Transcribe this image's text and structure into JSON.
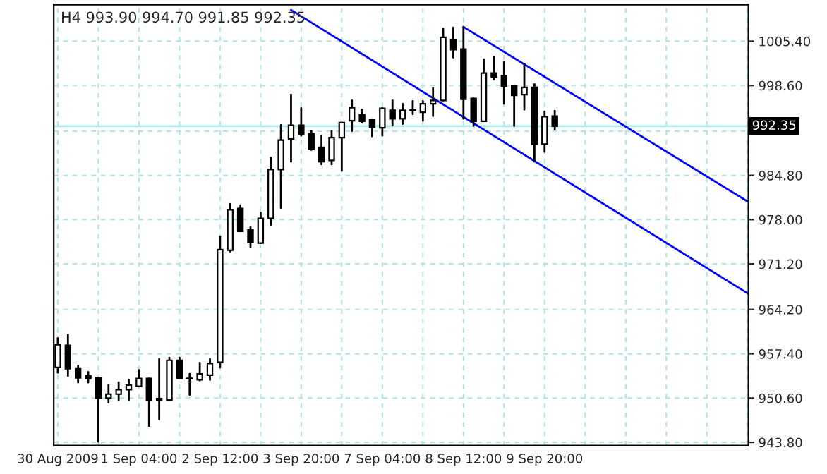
{
  "chart_data": {
    "type": "candlestick",
    "title": "H4 993.90 994.70 991.85 992.35",
    "categories": [
      "30 Aug 2009",
      null,
      null,
      null,
      null,
      null,
      null,
      null,
      "1 Sep 04:00",
      null,
      null,
      null,
      null,
      null,
      null,
      null,
      "2 Sep 12:00",
      null,
      null,
      null,
      null,
      null,
      null,
      null,
      "3 Sep 20:00",
      null,
      null,
      null,
      null,
      null,
      null,
      null,
      "7 Sep 04:00",
      null,
      null,
      null,
      null,
      null,
      null,
      null,
      "8 Sep 12:00",
      null,
      null,
      null,
      null,
      null,
      null,
      null,
      "9 Sep 20:00",
      null,
      null,
      null,
      null,
      null,
      null,
      null,
      null,
      null,
      null,
      null,
      null,
      null,
      null,
      null,
      null,
      null,
      null,
      null,
      null
    ],
    "ohlc": [
      [
        955.3,
        959.8,
        954.5,
        958.8
      ],
      [
        958.7,
        960.3,
        954.0,
        955.1
      ],
      [
        955.1,
        955.6,
        953.0,
        953.7
      ],
      [
        954.0,
        954.6,
        953.0,
        953.6
      ],
      [
        953.7,
        953.7,
        943.9,
        950.6
      ],
      [
        950.6,
        952.6,
        949.9,
        951.2
      ],
      [
        951.2,
        953.0,
        950.3,
        951.9
      ],
      [
        951.9,
        953.4,
        950.3,
        952.6
      ],
      [
        952.4,
        954.9,
        952.4,
        953.6
      ],
      [
        953.6,
        953.6,
        946.3,
        950.3
      ],
      [
        950.5,
        956.6,
        947.3,
        950.3
      ],
      [
        950.3,
        956.8,
        950.3,
        956.4
      ],
      [
        956.4,
        956.8,
        953.6,
        953.6
      ],
      [
        953.6,
        954.3,
        951.1,
        953.5
      ],
      [
        953.4,
        956.0,
        953.3,
        954.3
      ],
      [
        954.1,
        956.6,
        953.4,
        955.9
      ],
      [
        956.1,
        975.4,
        955.3,
        973.4
      ],
      [
        973.3,
        980.4,
        973.1,
        979.5
      ],
      [
        979.7,
        980.2,
        976.2,
        976.2
      ],
      [
        976.4,
        976.8,
        973.8,
        974.5
      ],
      [
        974.4,
        979.1,
        974.4,
        978.2
      ],
      [
        978.2,
        987.5,
        977.2,
        985.7
      ],
      [
        985.7,
        992.5,
        979.8,
        990.2
      ],
      [
        990.4,
        997.2,
        986.9,
        992.5
      ],
      [
        992.5,
        995.1,
        990.9,
        991.1
      ],
      [
        991.2,
        991.6,
        988.7,
        988.8
      ],
      [
        989.1,
        990.9,
        986.5,
        986.9
      ],
      [
        987.1,
        991.6,
        986.5,
        990.6
      ],
      [
        990.6,
        992.9,
        985.5,
        992.9
      ],
      [
        993.2,
        996.3,
        991.6,
        995.2
      ],
      [
        994.1,
        994.9,
        992.9,
        993.1
      ],
      [
        993.4,
        993.4,
        990.8,
        992.2
      ],
      [
        992.1,
        995.1,
        990.9,
        995.1
      ],
      [
        994.8,
        996.3,
        992.5,
        993.5
      ],
      [
        993.5,
        995.8,
        992.7,
        994.8
      ],
      [
        994.8,
        996.2,
        994.2,
        994.9
      ],
      [
        994.5,
        996.2,
        993.2,
        995.8
      ],
      [
        995.8,
        998.2,
        993.9,
        996.3
      ],
      [
        996.3,
        1007.3,
        996.3,
        1006.0
      ],
      [
        1005.6,
        1007.5,
        1002.9,
        1004.1
      ],
      [
        1004.2,
        1007.6,
        993.5,
        996.5
      ],
      [
        996.6,
        996.6,
        992.4,
        993.1
      ],
      [
        993.1,
        1002.6,
        993.1,
        1000.5
      ],
      [
        1000.5,
        1003.0,
        999.5,
        999.9
      ],
      [
        1000.1,
        1002.2,
        995.8,
        998.5
      ],
      [
        998.6,
        998.6,
        992.4,
        997.1
      ],
      [
        997.2,
        1001.9,
        994.9,
        998.3
      ],
      [
        998.3,
        998.8,
        986.9,
        989.6
      ],
      [
        989.6,
        994.6,
        988.4,
        993.8
      ],
      [
        993.9,
        994.7,
        991.85,
        992.35
      ],
      null,
      null,
      null,
      null,
      null,
      null,
      null,
      null,
      null,
      null,
      null,
      null,
      null,
      null,
      null,
      null,
      null,
      null,
      null
    ],
    "series": [
      {
        "type": "line",
        "color": "#0000ff",
        "values": [
          null,
          null,
          null,
          null,
          null,
          null,
          null,
          null,
          null,
          null,
          null,
          null,
          null,
          null,
          null,
          null,
          null,
          null,
          null,
          null,
          null,
          null,
          null,
          1010.2,
          null,
          null,
          null,
          null,
          null,
          null,
          null,
          null,
          null,
          null,
          null,
          null,
          null,
          null,
          null,
          null,
          null,
          null,
          null,
          null,
          null,
          null,
          null,
          null,
          null,
          null,
          null,
          null,
          null,
          null,
          null,
          null,
          null,
          null,
          null,
          null,
          null,
          null,
          null,
          null,
          null,
          null,
          null,
          null,
          966.7
        ]
      },
      {
        "type": "line",
        "color": "#0000ff",
        "values": [
          null,
          null,
          null,
          null,
          null,
          null,
          null,
          null,
          null,
          null,
          null,
          null,
          null,
          null,
          null,
          null,
          null,
          null,
          null,
          null,
          null,
          null,
          null,
          null,
          null,
          null,
          null,
          null,
          null,
          null,
          null,
          null,
          null,
          null,
          null,
          null,
          null,
          null,
          null,
          null,
          1007.6,
          null,
          null,
          null,
          null,
          null,
          null,
          null,
          null,
          null,
          null,
          null,
          null,
          null,
          null,
          null,
          null,
          null,
          null,
          null,
          null,
          null,
          null,
          null,
          null,
          null,
          null,
          null,
          980.8
        ]
      }
    ],
    "ylim": [
      943.3,
      1011.0
    ],
    "yticks": [
      {
        "value": 943.8,
        "label": "943.80"
      },
      {
        "value": 950.6,
        "label": "950.60"
      },
      {
        "value": 957.4,
        "label": "957.40"
      },
      {
        "value": 964.2,
        "label": "964.20"
      },
      {
        "value": 971.2,
        "label": "971.20"
      },
      {
        "value": 978.0,
        "label": "978.00"
      },
      {
        "value": 984.8,
        "label": "984.80"
      },
      {
        "value": 991.6,
        "label": null
      },
      {
        "value": 998.6,
        "label": "998.60"
      },
      {
        "value": 1005.4,
        "label": "1005.40"
      }
    ],
    "ref_lines": [
      {
        "axis": "y",
        "value": 992.35,
        "label": "992.35",
        "color": "#a8ecec"
      }
    ],
    "grid": true,
    "legend": false
  }
}
